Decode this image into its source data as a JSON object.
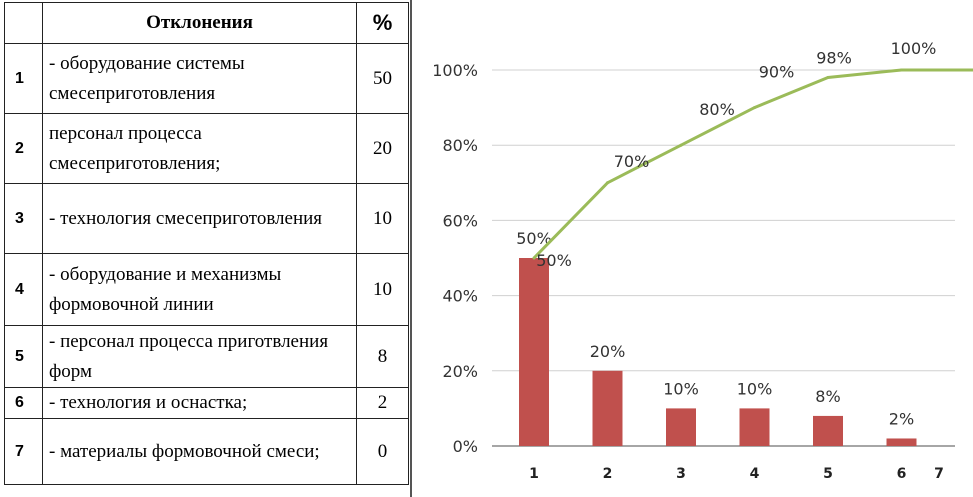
{
  "table": {
    "header": {
      "deviation": "Отклонения",
      "percent": "%"
    },
    "rows": [
      {
        "num": "1",
        "text": " - оборудование системы смесеприготовления",
        "value": "50"
      },
      {
        "num": "2",
        "text": "персонал процесса смесеприготовления;",
        "value": "20"
      },
      {
        "num": "3",
        "text": " - технология смесеприготовления",
        "value": "10"
      },
      {
        "num": "4",
        "text": " - оборудование и механизмы формовочной линии",
        "value": "10"
      },
      {
        "num": "5",
        "text": " - персонал процесса приготвления форм",
        "value": "8"
      },
      {
        "num": "6",
        "text": " - технология и оснастка;",
        "value": "2"
      },
      {
        "num": "7",
        "text": " - материалы формовочной смеси;",
        "value": "0"
      }
    ]
  },
  "chart_data": {
    "type": "bar",
    "categories": [
      "1",
      "2",
      "3",
      "4",
      "5",
      "6",
      "7"
    ],
    "series": [
      {
        "type": "bar",
        "values": [
          50,
          20,
          10,
          10,
          8,
          2,
          0
        ],
        "labels": [
          "50%",
          "20%",
          "10%",
          "10%",
          "8%",
          "2%",
          ""
        ],
        "color": "#c0504d"
      },
      {
        "type": "line",
        "values": [
          50,
          70,
          80,
          90,
          98,
          100,
          100
        ],
        "labels": [
          "50%",
          "70%",
          "80%",
          "90%",
          "98%",
          "100%",
          ""
        ],
        "color": "#9bbb59"
      }
    ],
    "yticks": [
      "0%",
      "20%",
      "40%",
      "60%",
      "80%",
      "100%"
    ],
    "ylim": [
      0,
      100
    ],
    "grid": true,
    "legend": "none"
  }
}
